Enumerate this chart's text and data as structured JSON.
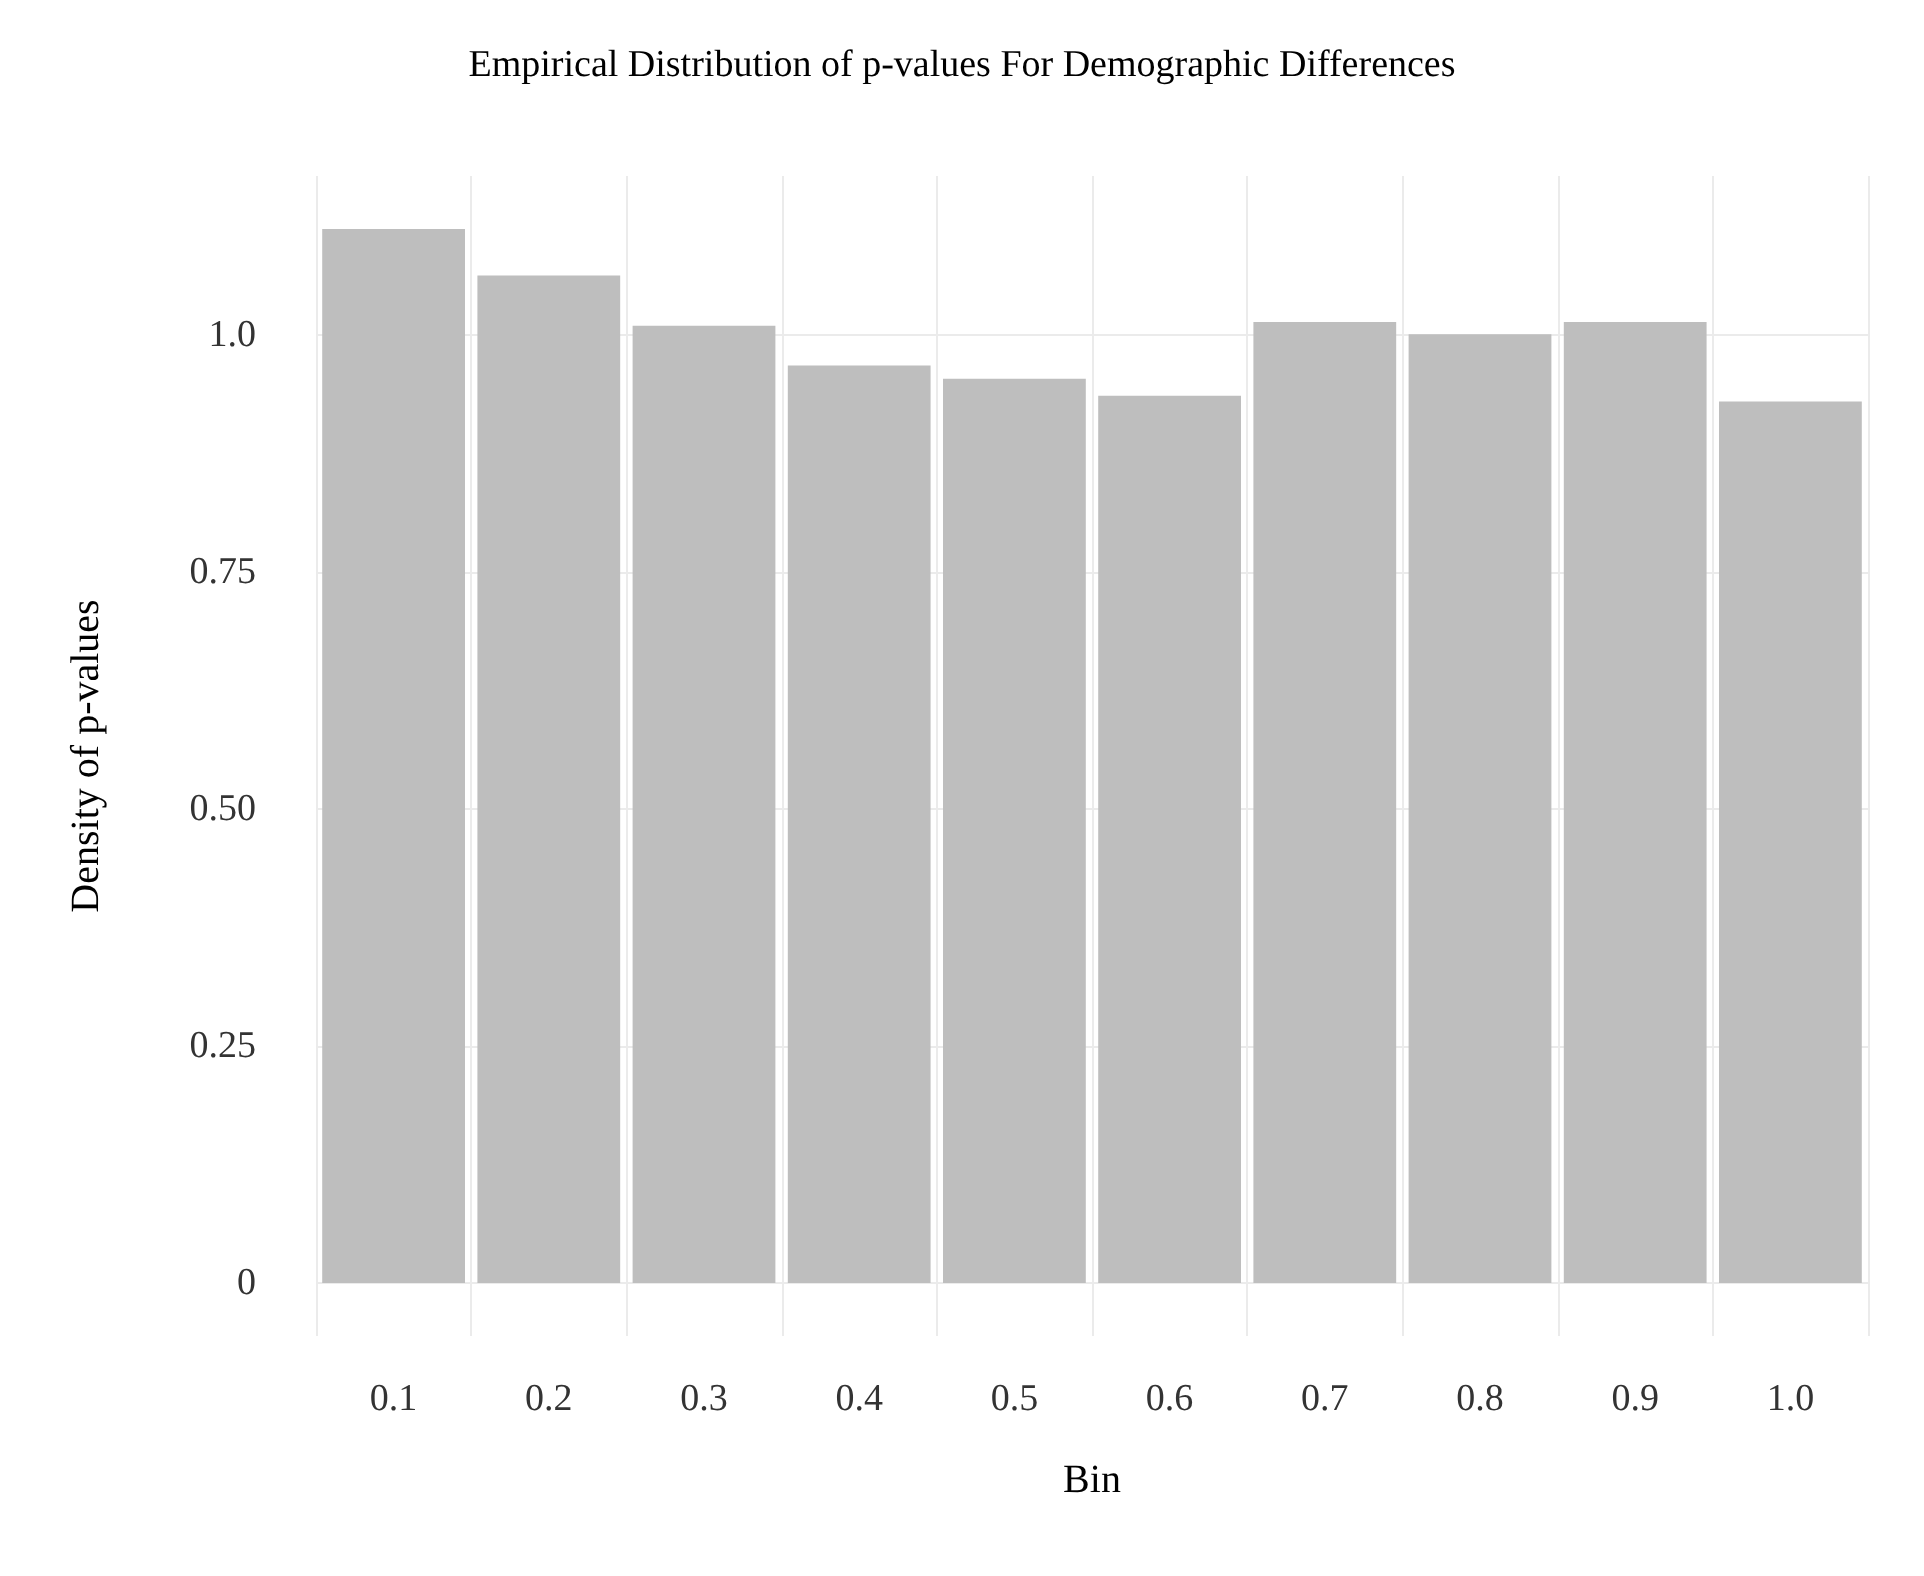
{
  "chart_data": {
    "type": "bar",
    "title": "Empirical Distribution of p-values For Demographic Differences",
    "xlabel": "Bin",
    "ylabel": "Density of p-values",
    "categories": [
      "0.1",
      "0.2",
      "0.3",
      "0.4",
      "0.5",
      "0.6",
      "0.7",
      "0.8",
      "0.9",
      "1.0"
    ],
    "values": [
      1.112,
      1.063,
      1.01,
      0.968,
      0.954,
      0.936,
      1.014,
      1.001,
      1.014,
      0.93
    ],
    "color": "#bebebe",
    "ylim": [
      -0.056,
      1.168
    ],
    "yticks": [
      0,
      0.25,
      {
        "value": 0.5,
        "label": "0.50"
      },
      0.75,
      {
        "value": 1,
        "label": "1.0"
      }
    ],
    "grid": true
  }
}
